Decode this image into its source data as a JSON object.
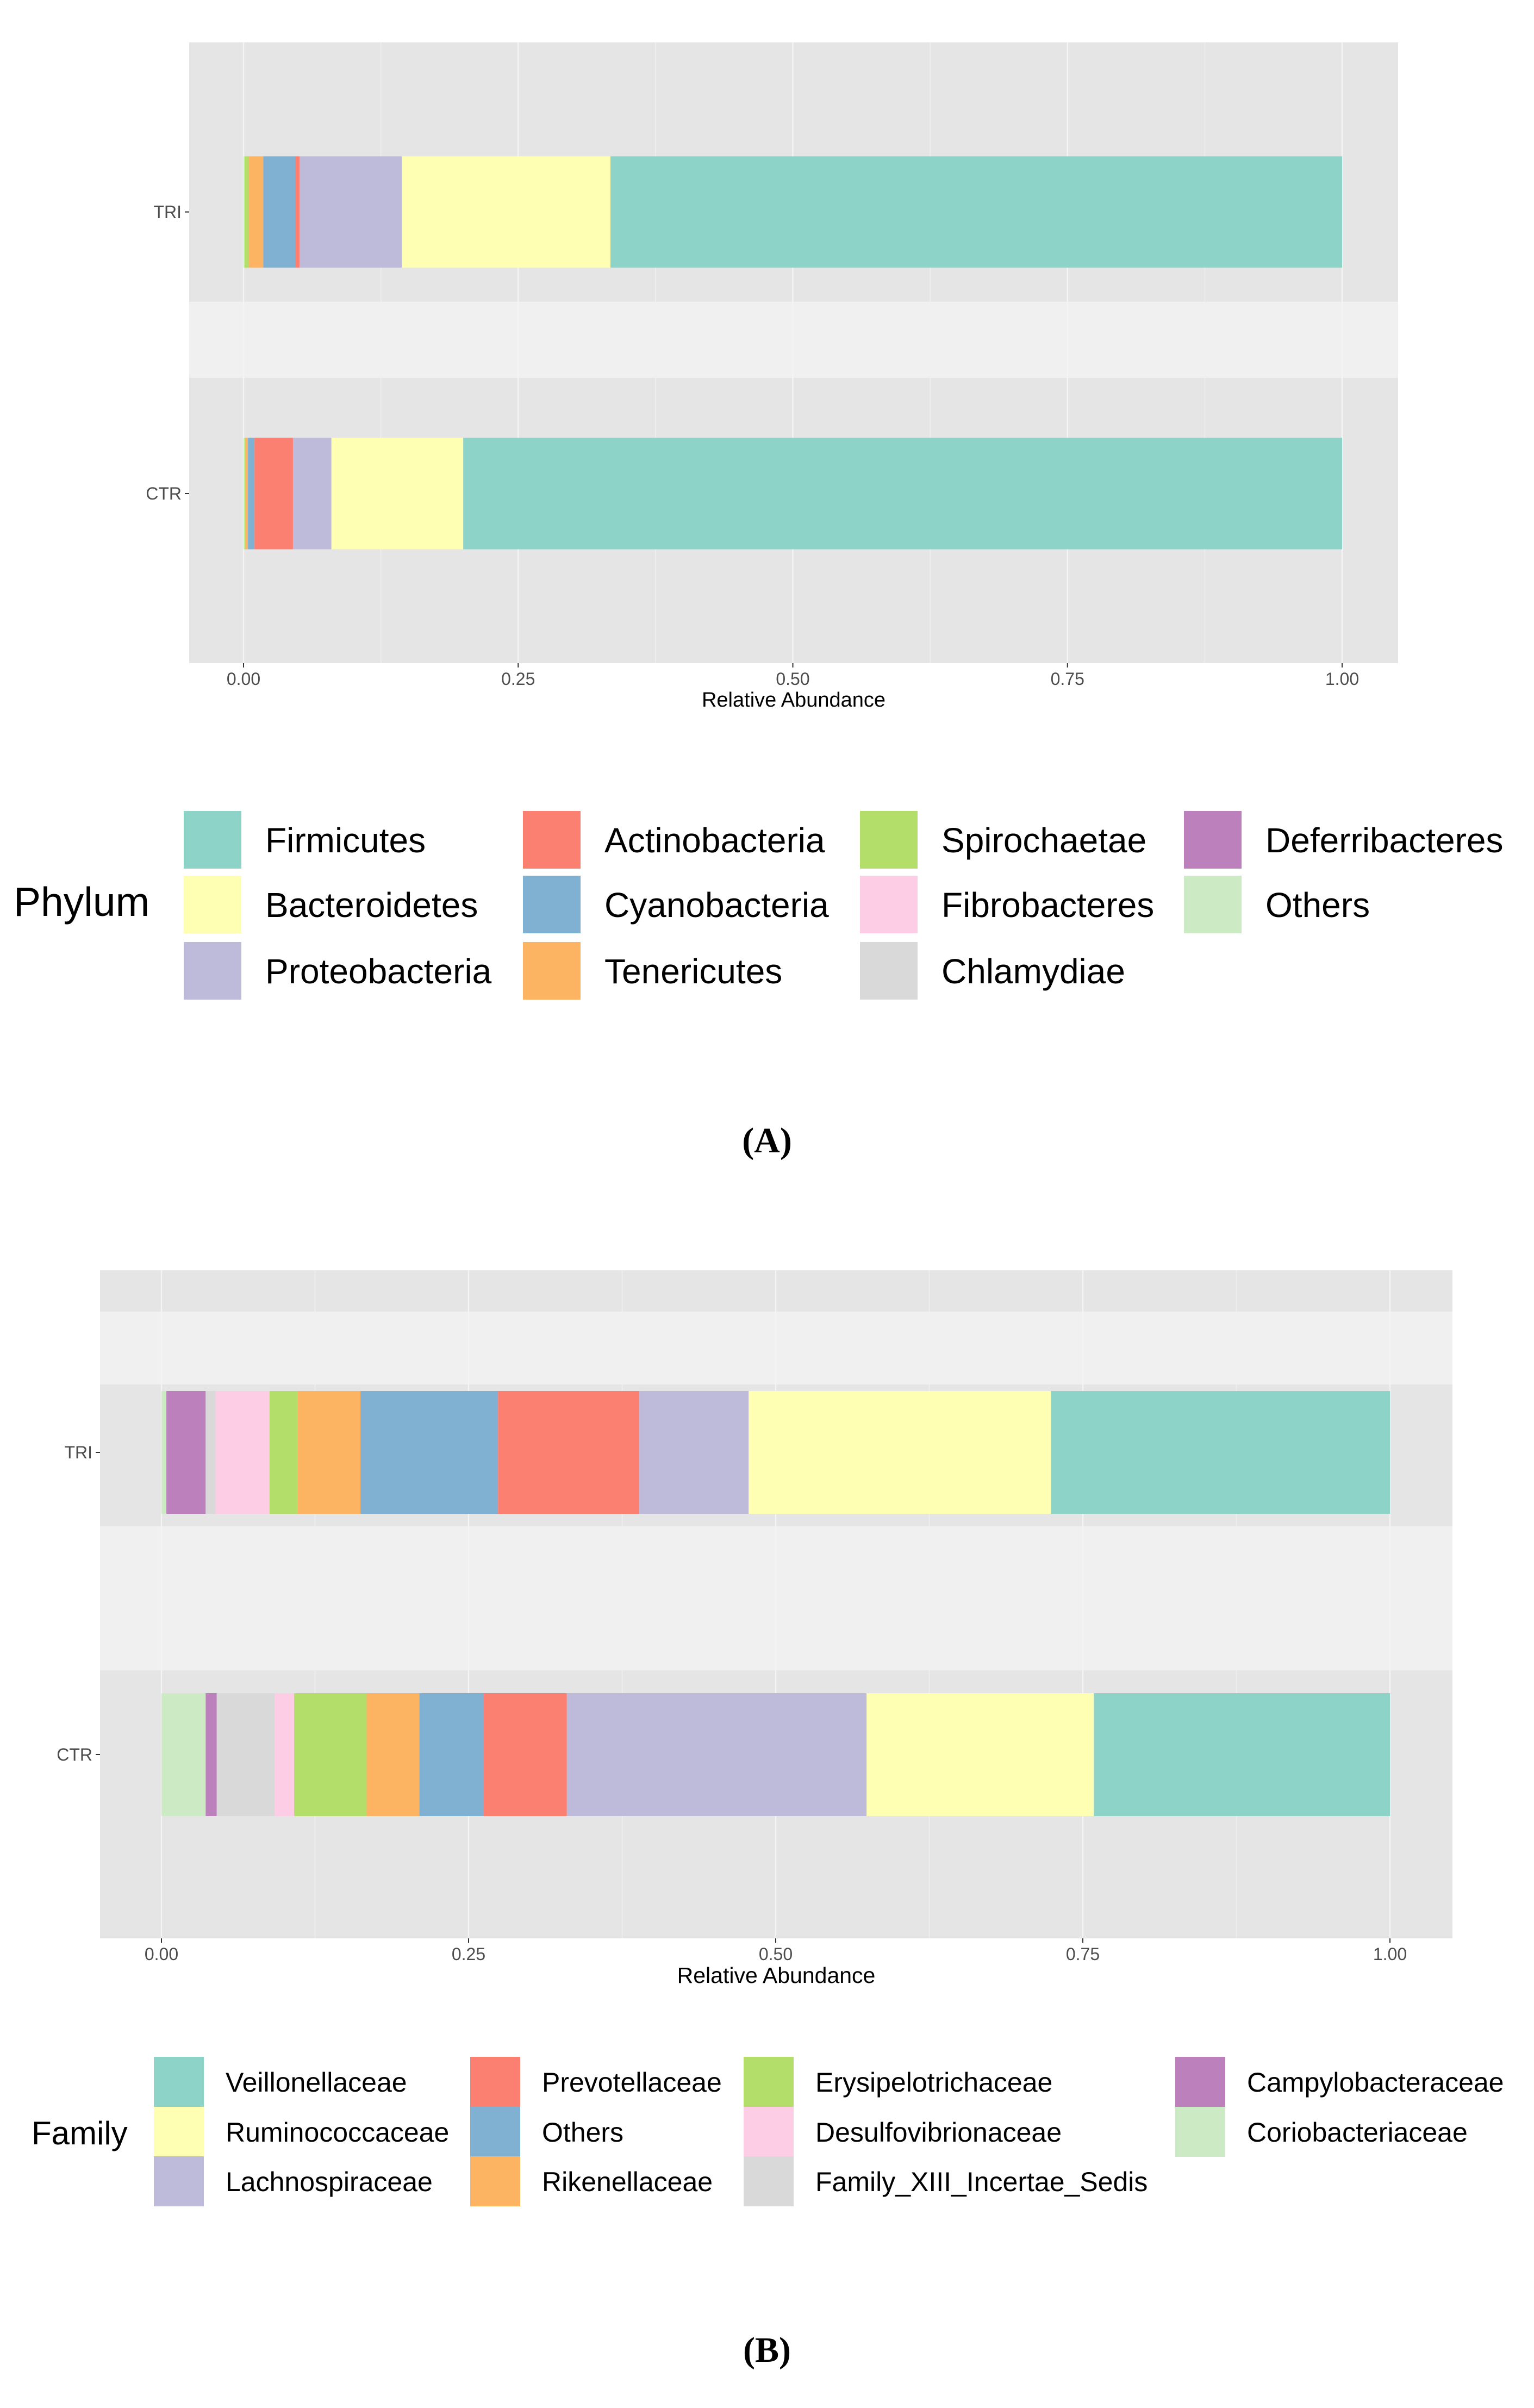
{
  "colors": {
    "panel_bg": "#e5e5e5",
    "band_bg": "#f0f0f0",
    "grid_minor": "#efefef",
    "grid_major": "#f4f4f4",
    "axis_text": "#4d4d4d",
    "title_text": "#000000"
  },
  "chart_data": [
    {
      "type": "bar",
      "orientation": "horizontal",
      "stacked": true,
      "panel_label": "(A)",
      "categories": [
        "CTR",
        "TRI"
      ],
      "xlabel": "Relative Abundance",
      "ylabel": "",
      "xlim": [
        0,
        1
      ],
      "xticks": [
        "0.00",
        "0.25",
        "0.50",
        "0.75",
        "1.00"
      ],
      "legend": {
        "title": "Phylum",
        "position": "bottom",
        "entries": [
          {
            "label": "Firmicutes",
            "color": "#8dd3c7"
          },
          {
            "label": "Bacteroidetes",
            "color": "#ffffb3"
          },
          {
            "label": "Proteobacteria",
            "color": "#bebada"
          },
          {
            "label": "Actinobacteria",
            "color": "#fb8072"
          },
          {
            "label": "Cyanobacteria",
            "color": "#80b1d3"
          },
          {
            "label": "Tenericutes",
            "color": "#fdb462"
          },
          {
            "label": "Spirochaetae",
            "color": "#b3de69"
          },
          {
            "label": "Fibrobacteres",
            "color": "#fccde5"
          },
          {
            "label": "Chlamydiae",
            "color": "#d9d9d9"
          },
          {
            "label": "Deferribacteres",
            "color": "#bc80bd"
          },
          {
            "label": "Others",
            "color": "#ccebc5"
          }
        ]
      },
      "series": [
        {
          "name": "Others",
          "values": [
            0.001,
            0.001
          ]
        },
        {
          "name": "Deferribacteres",
          "values": [
            0.0,
            0.0
          ]
        },
        {
          "name": "Chlamydiae",
          "values": [
            0.0,
            0.0
          ]
        },
        {
          "name": "Fibrobacteres",
          "values": [
            0.0,
            0.0
          ]
        },
        {
          "name": "Spirochaetae",
          "values": [
            0.001,
            0.004
          ]
        },
        {
          "name": "Tenericutes",
          "values": [
            0.002,
            0.013
          ]
        },
        {
          "name": "Cyanobacteria",
          "values": [
            0.006,
            0.029
          ]
        },
        {
          "name": "Actinobacteria",
          "values": [
            0.035,
            0.004
          ]
        },
        {
          "name": "Proteobacteria",
          "values": [
            0.035,
            0.093
          ]
        },
        {
          "name": "Bacteroidetes",
          "values": [
            0.12,
            0.19
          ]
        },
        {
          "name": "Firmicutes",
          "values": [
            0.8,
            0.666
          ]
        }
      ]
    },
    {
      "type": "bar",
      "orientation": "horizontal",
      "stacked": true,
      "panel_label": "(B)",
      "categories": [
        "CTR",
        "TRI"
      ],
      "xlabel": "Relative Abundance",
      "ylabel": "",
      "xlim": [
        0,
        1
      ],
      "xticks": [
        "0.00",
        "0.25",
        "0.50",
        "0.75",
        "1.00"
      ],
      "legend": {
        "title": "Family",
        "position": "bottom",
        "entries": [
          {
            "label": "Veillonellaceae",
            "color": "#8dd3c7"
          },
          {
            "label": "Ruminococcaceae",
            "color": "#ffffb3"
          },
          {
            "label": "Lachnospiraceae",
            "color": "#bebada"
          },
          {
            "label": "Prevotellaceae",
            "color": "#fb8072"
          },
          {
            "label": "Others",
            "color": "#80b1d3"
          },
          {
            "label": "Rikenellaceae",
            "color": "#fdb462"
          },
          {
            "label": "Erysipelotrichaceae",
            "color": "#b3de69"
          },
          {
            "label": "Desulfovibrionaceae",
            "color": "#fccde5"
          },
          {
            "label": "Family_XIII_Incertae_Sedis",
            "color": "#d9d9d9"
          },
          {
            "label": "Campylobacteraceae",
            "color": "#bc80bd"
          },
          {
            "label": "Coriobacteriaceae",
            "color": "#ccebc5"
          }
        ]
      },
      "series": [
        {
          "name": "Coriobacteriaceae",
          "values": [
            0.036,
            0.004
          ]
        },
        {
          "name": "Campylobacteraceae",
          "values": [
            0.009,
            0.032
          ]
        },
        {
          "name": "Family_XIII_Incertae_Sedis",
          "values": [
            0.047,
            0.008
          ]
        },
        {
          "name": "Desulfovibrionaceae",
          "values": [
            0.016,
            0.044
          ]
        },
        {
          "name": "Erysipelotrichaceae",
          "values": [
            0.059,
            0.023
          ]
        },
        {
          "name": "Rikenellaceae",
          "values": [
            0.043,
            0.051
          ]
        },
        {
          "name": "Others",
          "values": [
            0.052,
            0.112
          ]
        },
        {
          "name": "Prevotellaceae",
          "values": [
            0.068,
            0.115
          ]
        },
        {
          "name": "Lachnospiraceae",
          "values": [
            0.244,
            0.089
          ]
        },
        {
          "name": "Ruminococcaceae",
          "values": [
            0.185,
            0.246
          ]
        },
        {
          "name": "Veillonellaceae",
          "values": [
            0.241,
            0.276
          ]
        }
      ]
    }
  ]
}
